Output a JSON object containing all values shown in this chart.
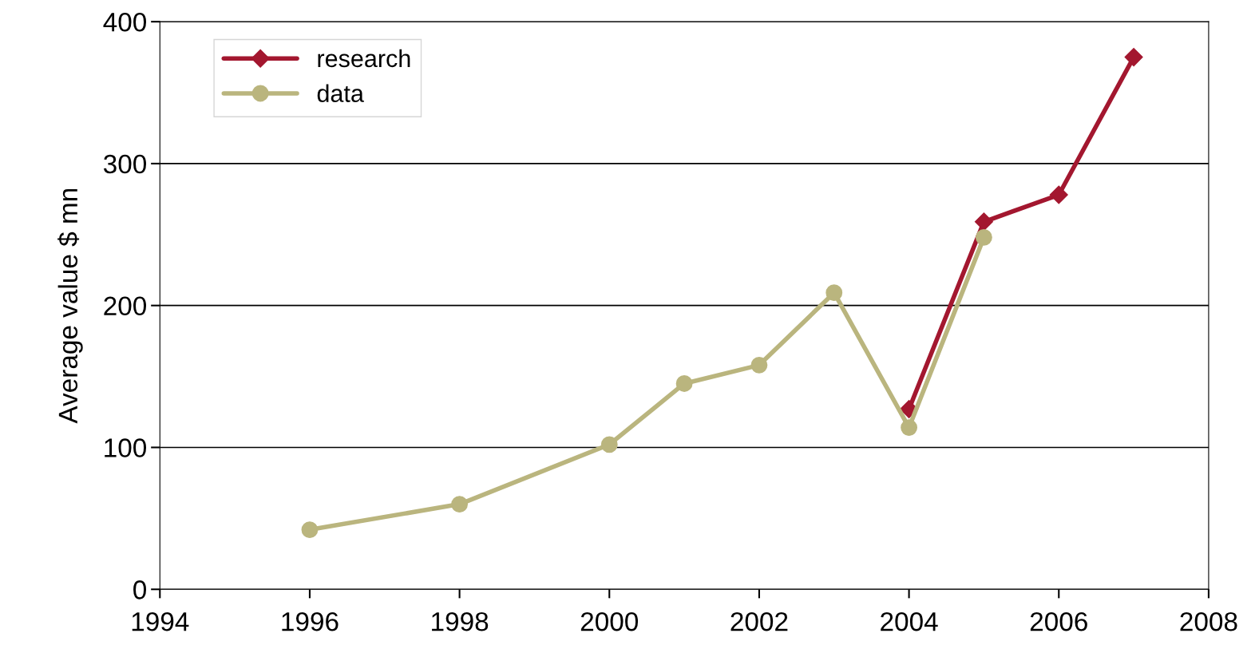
{
  "chart_data": {
    "type": "line",
    "ylabel": "Average value $ mn",
    "series": [
      {
        "name": "research",
        "color": "#a3172f",
        "marker": "diamond",
        "x": [
          2004,
          2005,
          2006,
          2007
        ],
        "values": [
          127,
          259,
          278,
          375
        ]
      },
      {
        "name": "data",
        "color": "#bab57e",
        "marker": "circle",
        "x": [
          1996,
          1998,
          2000,
          2001,
          2002,
          2003,
          2004,
          2005
        ],
        "values": [
          42,
          60,
          102,
          145,
          158,
          209,
          114,
          248
        ]
      }
    ],
    "xlim": [
      1994,
      2008
    ],
    "xticks": [
      1994,
      1996,
      1998,
      2000,
      2002,
      2004,
      2006,
      2008
    ],
    "ylim": [
      0,
      400
    ],
    "yticks": [
      0,
      100,
      200,
      300,
      400
    ],
    "grid": "y",
    "legend": "top left",
    "line_style": "solid"
  }
}
